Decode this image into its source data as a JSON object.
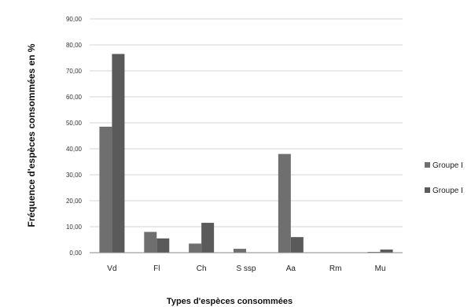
{
  "chart_data": {
    "type": "bar",
    "title": "",
    "xlabel": "Types d'espèces consommées",
    "ylabel": "Fréquence d'espèces consommées  en %",
    "categories": [
      "Vd",
      "Fl",
      "Ch",
      "S ssp",
      "Aa",
      "Rm",
      "Mu"
    ],
    "series": [
      {
        "name": "Groupe I",
        "values": [
          48.5,
          8.0,
          3.5,
          1.5,
          38.0,
          0.0,
          0.3
        ],
        "color": "#6f6f6f"
      },
      {
        "name": "Groupe I",
        "values": [
          76.5,
          5.5,
          11.5,
          0.0,
          6.0,
          0.0,
          1.2
        ],
        "color": "#5a5a5a"
      }
    ],
    "ylim": [
      0,
      90
    ],
    "yticks": [
      "0,00",
      "10,00",
      "20,00",
      "30,00",
      "40,00",
      "50,00",
      "60,00",
      "70,00",
      "80,00",
      "90,00"
    ],
    "grid": true,
    "legend_position": "right"
  }
}
